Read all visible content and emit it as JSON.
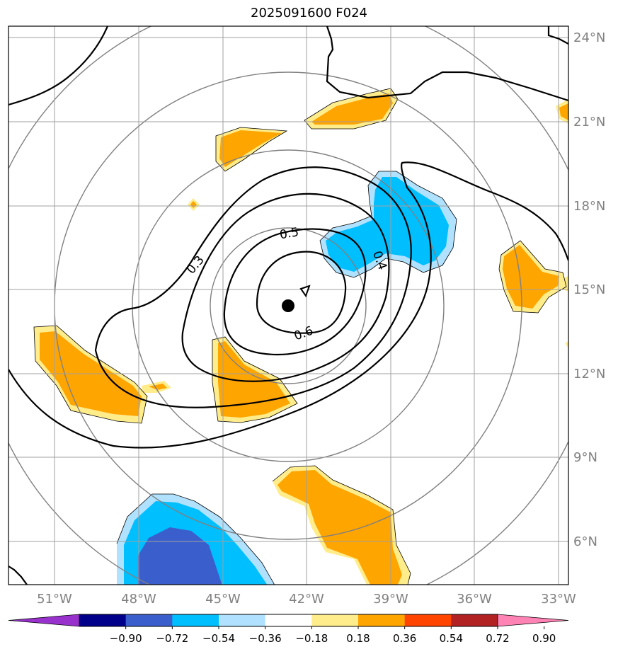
{
  "title": "2025091600 F024",
  "map": {
    "lon_ticks": [
      "51°W",
      "48°W",
      "45°W",
      "42°W",
      "39°W",
      "36°W",
      "33°W"
    ],
    "lat_ticks": [
      "24°N",
      "21°N",
      "18°N",
      "15°N",
      "12°N",
      "9°N",
      "6°N"
    ],
    "contour_labels": [
      "0.3",
      "0.4",
      "0.5",
      "0.6"
    ],
    "center_marker": "storm-center"
  },
  "colorbar": {
    "labels": [
      "−0.90",
      "−0.72",
      "−0.54",
      "−0.36",
      "−0.18",
      "0.18",
      "0.36",
      "0.54",
      "0.72",
      "0.90"
    ],
    "colors": [
      "#9932cc",
      "#00008b",
      "#3a5fcd",
      "#00bfff",
      "#b0e2ff",
      "#ffffff",
      "#ffec8b",
      "#ffa500",
      "#ff4500",
      "#b22222",
      "#ff83b4"
    ]
  }
}
